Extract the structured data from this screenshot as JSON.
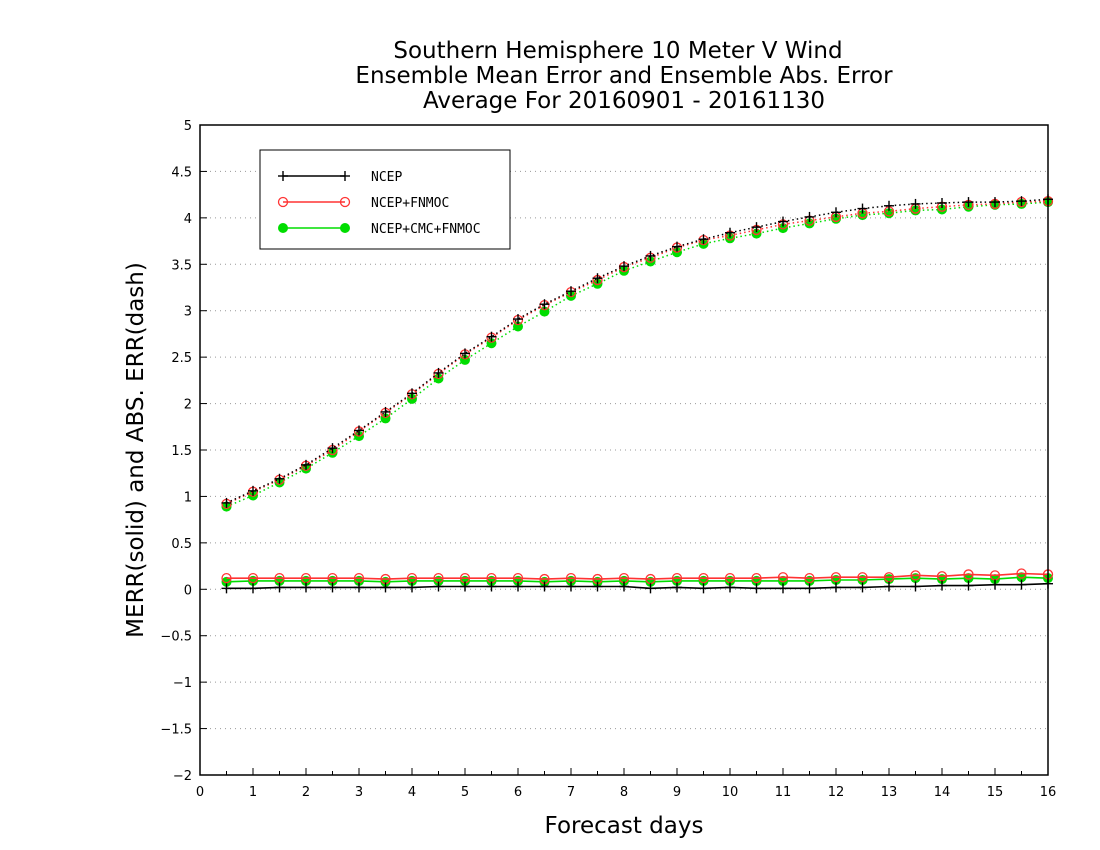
{
  "chart_data": {
    "type": "line",
    "title": [
      "Southern Hemisphere 10 Meter V Wind",
      "Ensemble Mean Error and Ensemble Abs. Error",
      "Average For 20160901 - 20161130"
    ],
    "xlabel": "Forecast days",
    "ylabel": "MERR(solid) and ABS. ERR(dash)",
    "xlim": [
      0,
      16
    ],
    "ylim": [
      -2,
      5
    ],
    "xticks": [
      "0",
      "1",
      "2",
      "3",
      "4",
      "5",
      "6",
      "7",
      "8",
      "9",
      "10",
      "11",
      "12",
      "13",
      "14",
      "15",
      "16"
    ],
    "yticks": [
      "−2",
      "−1.5",
      "−1",
      "−0.5",
      "0",
      "0.5",
      "1",
      "1.5",
      "2",
      "2.5",
      "3",
      "3.5",
      "4",
      "4.5",
      "5"
    ],
    "grid": "horizontal-dotted",
    "legend_position": "top-left",
    "x": [
      0.5,
      1,
      1.5,
      2,
      2.5,
      3,
      3.5,
      4,
      4.5,
      5,
      5.5,
      6,
      6.5,
      7,
      7.5,
      8,
      8.5,
      9,
      9.5,
      10,
      10.5,
      11,
      11.5,
      12,
      12.5,
      13,
      13.5,
      14,
      14.5,
      15,
      15.5,
      16
    ],
    "series": [
      {
        "name": "NCEP",
        "color": "#000000",
        "marker": "plus",
        "abs_err": [
          0.93,
          1.06,
          1.19,
          1.34,
          1.52,
          1.71,
          1.91,
          2.11,
          2.33,
          2.54,
          2.72,
          2.91,
          3.07,
          3.21,
          3.35,
          3.48,
          3.59,
          3.69,
          3.77,
          3.84,
          3.9,
          3.96,
          4.01,
          4.06,
          4.1,
          4.13,
          4.15,
          4.16,
          4.17,
          4.17,
          4.18,
          4.2
        ],
        "mean_err": [
          0.01,
          0.01,
          0.02,
          0.02,
          0.02,
          0.02,
          0.02,
          0.02,
          0.03,
          0.03,
          0.03,
          0.03,
          0.03,
          0.03,
          0.03,
          0.03,
          0.01,
          0.02,
          0.01,
          0.02,
          0.01,
          0.01,
          0.01,
          0.02,
          0.02,
          0.03,
          0.03,
          0.04,
          0.04,
          0.05,
          0.05,
          0.06
        ]
      },
      {
        "name": "NCEP+FNMOC",
        "color": "#ff3333",
        "marker": "open-circle",
        "abs_err": [
          0.92,
          1.05,
          1.18,
          1.33,
          1.5,
          1.7,
          1.9,
          2.1,
          2.32,
          2.53,
          2.71,
          2.9,
          3.06,
          3.2,
          3.33,
          3.47,
          3.57,
          3.68,
          3.76,
          3.81,
          3.87,
          3.93,
          3.97,
          4.01,
          4.05,
          4.07,
          4.1,
          4.12,
          4.14,
          4.15,
          4.17,
          4.18
        ],
        "mean_err": [
          0.12,
          0.12,
          0.12,
          0.12,
          0.12,
          0.12,
          0.11,
          0.12,
          0.12,
          0.12,
          0.12,
          0.12,
          0.11,
          0.12,
          0.11,
          0.12,
          0.11,
          0.12,
          0.12,
          0.12,
          0.12,
          0.13,
          0.12,
          0.13,
          0.13,
          0.13,
          0.15,
          0.14,
          0.16,
          0.15,
          0.17,
          0.16
        ]
      },
      {
        "name": "NCEP+CMC+FNMOC",
        "color": "#00dd00",
        "marker": "filled-circle",
        "abs_err": [
          0.89,
          1.01,
          1.15,
          1.3,
          1.47,
          1.65,
          1.84,
          2.05,
          2.27,
          2.47,
          2.65,
          2.83,
          2.99,
          3.16,
          3.29,
          3.43,
          3.53,
          3.63,
          3.72,
          3.78,
          3.83,
          3.89,
          3.94,
          3.99,
          4.03,
          4.05,
          4.08,
          4.09,
          4.12,
          4.14,
          4.15,
          4.17
        ],
        "mean_err": [
          0.08,
          0.09,
          0.09,
          0.09,
          0.09,
          0.09,
          0.08,
          0.09,
          0.09,
          0.09,
          0.09,
          0.09,
          0.08,
          0.09,
          0.08,
          0.09,
          0.08,
          0.09,
          0.09,
          0.09,
          0.09,
          0.09,
          0.09,
          0.1,
          0.1,
          0.11,
          0.12,
          0.11,
          0.12,
          0.11,
          0.13,
          0.12
        ]
      }
    ]
  }
}
